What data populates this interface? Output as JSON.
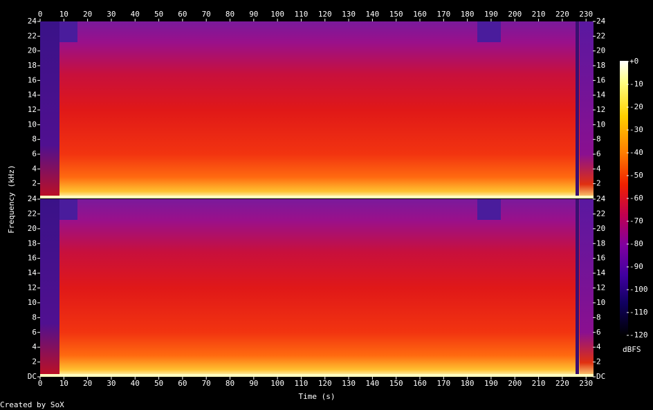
{
  "chart_data": {
    "type": "spectrogram",
    "xlabel": "Time (s)",
    "ylabel": "Frequency (kHz)",
    "footer": "Created by SoX",
    "xlim": [
      0,
      233
    ],
    "xticks": [
      0,
      10,
      20,
      30,
      40,
      50,
      60,
      70,
      80,
      90,
      100,
      110,
      120,
      130,
      140,
      150,
      160,
      170,
      180,
      190,
      200,
      210,
      220,
      230
    ],
    "panels": [
      {
        "ylim": [
          0,
          24
        ],
        "yticks": [
          2,
          4,
          6,
          8,
          10,
          12,
          14,
          16,
          18,
          20,
          22,
          24
        ]
      },
      {
        "ylim": [
          0,
          24
        ],
        "yticks": [
          {
            "value": 0,
            "label": "DC"
          },
          2,
          4,
          6,
          8,
          10,
          12,
          14,
          16,
          18,
          20,
          22,
          24
        ]
      }
    ],
    "colorbar": {
      "label": "dBFS",
      "lim": [
        -120,
        0
      ],
      "ticks": [
        {
          "value": 0,
          "label": "+0"
        },
        -10,
        -20,
        -30,
        -40,
        -50,
        -60,
        -70,
        -80,
        -90,
        -100,
        -110,
        -120
      ]
    }
  }
}
